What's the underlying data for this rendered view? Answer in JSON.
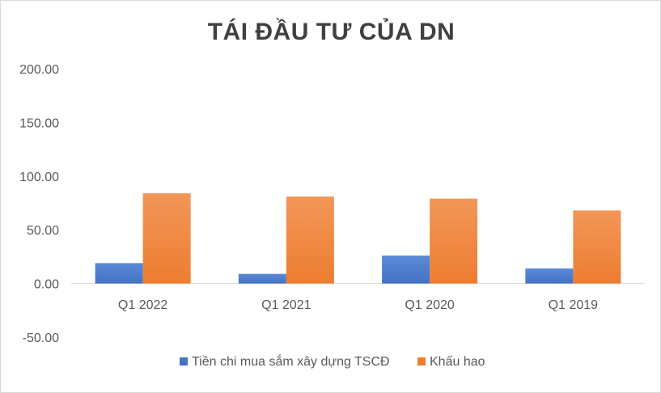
{
  "chart_data": {
    "type": "bar",
    "title": "TÁI ĐẦU TƯ CỦA DN",
    "categories": [
      "Q1 2022",
      "Q1 2021",
      "Q1 2020",
      "Q1 2019"
    ],
    "series": [
      {
        "name": "Tiền chi mua sắm xây dựng TSCĐ",
        "values": [
          19,
          9,
          26,
          14
        ],
        "color": "#4472c4"
      },
      {
        "name": "Khấu hao",
        "values": [
          84,
          81,
          79,
          68
        ],
        "color": "#ed7d31"
      }
    ],
    "yticks": [
      "200.00",
      "150.00",
      "100.00",
      "50.00",
      "0.00",
      "-50.00"
    ],
    "ylim": [
      -50,
      200
    ],
    "xlabel": "",
    "ylabel": "",
    "grid": false,
    "legend": "bottom"
  }
}
